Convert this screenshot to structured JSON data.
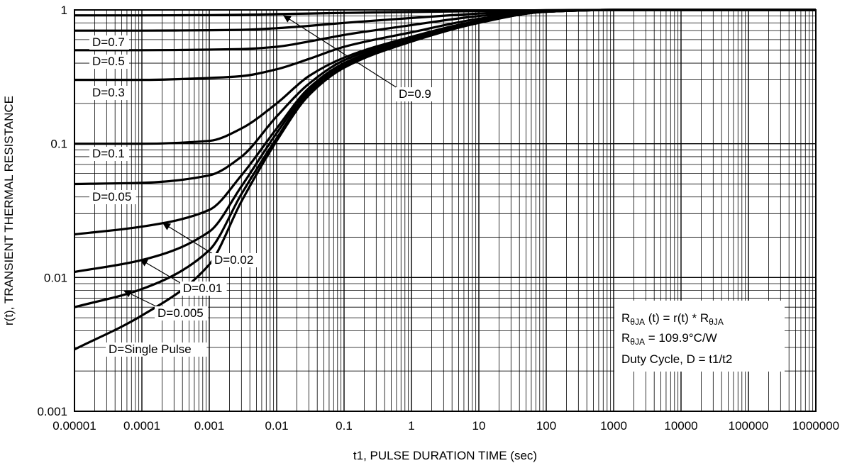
{
  "chart_data": {
    "type": "line",
    "xlabel": "t1, PULSE DURATION TIME (sec)",
    "ylabel": "r(t), TRANSIENT THERMAL RESISTANCE",
    "x_scale": "log",
    "y_scale": "log",
    "xlim": [
      1e-05,
      1000000
    ],
    "ylim": [
      0.001,
      1
    ],
    "grid": true,
    "x_tick_labels": [
      "0.00001",
      "0.0001",
      "0.001",
      "0.01",
      "0.1",
      "1",
      "10",
      "100",
      "1000",
      "10000",
      "100000",
      "1000000"
    ],
    "y_tick_labels": [
      "0.001",
      "0.01",
      "0.1",
      "1"
    ],
    "x": [
      1e-05,
      0.0001,
      0.001,
      0.003,
      0.01,
      0.03,
      0.1,
      1,
      10,
      100,
      1000,
      1000000
    ],
    "series": [
      {
        "name": "D=0.9",
        "values": [
          0.91,
          0.91,
          0.915,
          0.92,
          0.93,
          0.94,
          0.95,
          0.965,
          0.98,
          0.995,
          1.0,
          1.0
        ]
      },
      {
        "name": "D=0.7",
        "values": [
          0.7,
          0.7,
          0.705,
          0.71,
          0.73,
          0.76,
          0.8,
          0.87,
          0.94,
          0.99,
          1.0,
          1.0
        ]
      },
      {
        "name": "D=0.5",
        "values": [
          0.5,
          0.5,
          0.505,
          0.51,
          0.53,
          0.58,
          0.65,
          0.77,
          0.9,
          0.985,
          1.0,
          1.0
        ]
      },
      {
        "name": "D=0.3",
        "values": [
          0.3,
          0.3,
          0.31,
          0.32,
          0.36,
          0.43,
          0.53,
          0.68,
          0.86,
          0.98,
          1.0,
          1.0
        ]
      },
      {
        "name": "D=0.1",
        "values": [
          0.1,
          0.1,
          0.105,
          0.13,
          0.2,
          0.32,
          0.44,
          0.63,
          0.83,
          0.975,
          1.0,
          1.0
        ]
      },
      {
        "name": "D=0.05",
        "values": [
          0.05,
          0.051,
          0.058,
          0.08,
          0.16,
          0.28,
          0.42,
          0.61,
          0.82,
          0.97,
          1.0,
          1.0
        ]
      },
      {
        "name": "D=0.02",
        "values": [
          0.021,
          0.024,
          0.032,
          0.058,
          0.13,
          0.26,
          0.4,
          0.6,
          0.81,
          0.97,
          1.0,
          1.0
        ]
      },
      {
        "name": "D=0.01",
        "values": [
          0.011,
          0.0135,
          0.022,
          0.048,
          0.12,
          0.25,
          0.39,
          0.59,
          0.81,
          0.97,
          1.0,
          1.0
        ]
      },
      {
        "name": "D=0.005",
        "values": [
          0.006,
          0.0082,
          0.016,
          0.042,
          0.11,
          0.24,
          0.38,
          0.585,
          0.805,
          0.97,
          1.0,
          1.0
        ]
      },
      {
        "name": "D=Single Pulse",
        "values": [
          0.0029,
          0.0052,
          0.0125,
          0.037,
          0.105,
          0.23,
          0.37,
          0.58,
          0.8,
          0.97,
          1.0,
          1.0
        ]
      }
    ],
    "annotation": {
      "line1": {
        "r": "R",
        "sub": "θJA",
        "mid": " (t) = r(t) * R",
        "sub2": "θJA"
      },
      "line2": {
        "r": "R",
        "sub": "θJA",
        "rest": " = 109.9°C/W"
      },
      "line3": "Duty Cycle, D = t1/t2"
    }
  }
}
